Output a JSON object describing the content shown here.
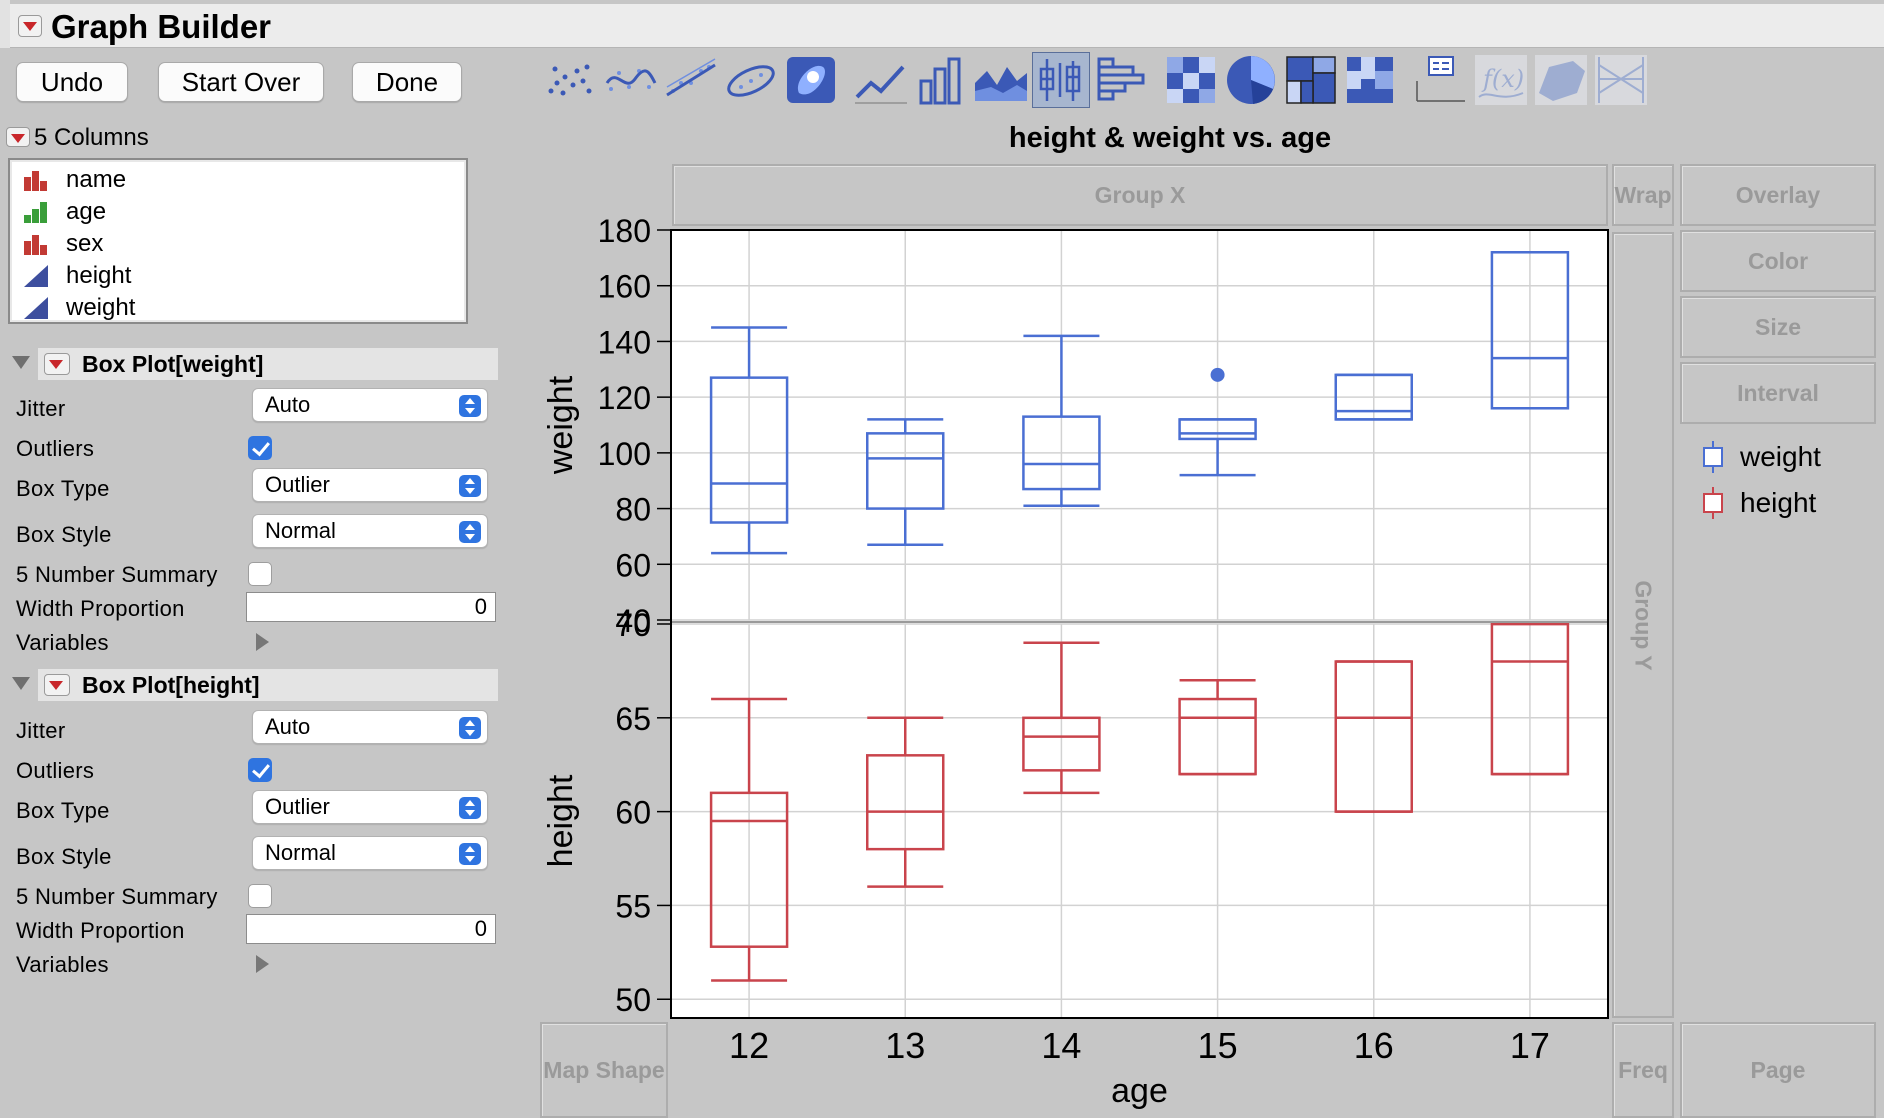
{
  "window": {
    "title": "Graph Builder"
  },
  "toolbar": {
    "undo_label": "Undo",
    "start_over_label": "Start Over",
    "done_label": "Done"
  },
  "palette": {
    "items": [
      {
        "name": "points-icon",
        "selected": false,
        "enabled": true
      },
      {
        "name": "smoother-icon",
        "selected": false,
        "enabled": true
      },
      {
        "name": "line-of-fit-icon",
        "selected": false,
        "enabled": true
      },
      {
        "name": "ellipse-icon",
        "selected": false,
        "enabled": true
      },
      {
        "name": "contour-icon",
        "selected": false,
        "enabled": true
      },
      {
        "name": "line-icon",
        "selected": false,
        "enabled": true
      },
      {
        "name": "bar-icon",
        "selected": false,
        "enabled": true
      },
      {
        "name": "area-icon",
        "selected": false,
        "enabled": true
      },
      {
        "name": "box-plot-icon",
        "selected": true,
        "enabled": true
      },
      {
        "name": "histogram-icon",
        "selected": false,
        "enabled": true
      },
      {
        "name": "heatmap-icon",
        "selected": false,
        "enabled": true
      },
      {
        "name": "pie-icon",
        "selected": false,
        "enabled": true
      },
      {
        "name": "treemap-icon",
        "selected": false,
        "enabled": true
      },
      {
        "name": "mosaic-icon",
        "selected": false,
        "enabled": true
      },
      {
        "name": "caption-box-icon",
        "selected": false,
        "enabled": true
      },
      {
        "name": "formula-icon",
        "selected": false,
        "enabled": false
      },
      {
        "name": "map-shapes-icon",
        "selected": false,
        "enabled": false
      },
      {
        "name": "parallel-icon",
        "selected": false,
        "enabled": false
      }
    ]
  },
  "columns": {
    "header": "5 Columns",
    "items": [
      {
        "label": "name",
        "type": "nominal"
      },
      {
        "label": "age",
        "type": "ordinal"
      },
      {
        "label": "sex",
        "type": "nominal"
      },
      {
        "label": "height",
        "type": "continuous"
      },
      {
        "label": "weight",
        "type": "continuous"
      }
    ]
  },
  "panels": [
    {
      "title": "Box Plot[weight]",
      "jitter_label": "Jitter",
      "jitter_value": "Auto",
      "outliers_label": "Outliers",
      "outliers_checked": true,
      "box_type_label": "Box Type",
      "box_type_value": "Outlier",
      "box_style_label": "Box Style",
      "box_style_value": "Normal",
      "five_num_label": "5 Number Summary",
      "five_num_checked": false,
      "width_label": "Width Proportion",
      "width_value": "0",
      "variables_label": "Variables"
    },
    {
      "title": "Box Plot[height]",
      "jitter_label": "Jitter",
      "jitter_value": "Auto",
      "outliers_label": "Outliers",
      "outliers_checked": true,
      "box_type_label": "Box Type",
      "box_type_value": "Outlier",
      "box_style_label": "Box Style",
      "box_style_value": "Normal",
      "five_num_label": "5 Number Summary",
      "five_num_checked": false,
      "width_label": "Width Proportion",
      "width_value": "0",
      "variables_label": "Variables"
    }
  ],
  "zones": {
    "group_x": "Group X",
    "wrap": "Wrap",
    "overlay": "Overlay",
    "color": "Color",
    "size": "Size",
    "interval": "Interval",
    "group_y": "Group Y",
    "map_shape": "Map Shape",
    "freq": "Freq",
    "page": "Page"
  },
  "legend": [
    {
      "label": "weight",
      "color": "#4a6fd3"
    },
    {
      "label": "height",
      "color": "#c9444c"
    }
  ],
  "chart_data": {
    "type": "box",
    "title": "height & weight vs. age",
    "xlabel": "age",
    "categories": [
      "12",
      "13",
      "14",
      "15",
      "16",
      "17"
    ],
    "grid": true,
    "panels": [
      {
        "ylabel": "weight",
        "color": "#4a6fd3",
        "ylim": [
          40,
          180
        ],
        "yticks": [
          40,
          60,
          80,
          100,
          120,
          140,
          160,
          180
        ],
        "boxes": [
          {
            "min": 64,
            "q1": 75,
            "median": 89,
            "q3": 127,
            "max": 145,
            "outliers": []
          },
          {
            "min": 67,
            "q1": 80,
            "median": 98,
            "q3": 107,
            "max": 112,
            "outliers": []
          },
          {
            "min": 81,
            "q1": 87,
            "median": 96,
            "q3": 113,
            "max": 142,
            "outliers": []
          },
          {
            "min": 92,
            "q1": 105,
            "median": 107,
            "q3": 112,
            "max": 112,
            "outliers": [
              128
            ]
          },
          {
            "min": 112,
            "q1": 112,
            "median": 115,
            "q3": 128,
            "max": 128,
            "outliers": []
          },
          {
            "min": 116,
            "q1": 116,
            "median": 134,
            "q3": 172,
            "max": 172,
            "outliers": []
          }
        ]
      },
      {
        "ylabel": "height",
        "color": "#c9444c",
        "ylim": [
          49,
          70
        ],
        "yticks": [
          50,
          55,
          60,
          65,
          70
        ],
        "boxes": [
          {
            "min": 51,
            "q1": 52.8,
            "median": 59.5,
            "q3": 61,
            "max": 66,
            "outliers": []
          },
          {
            "min": 56,
            "q1": 58,
            "median": 60,
            "q3": 63,
            "max": 65,
            "outliers": []
          },
          {
            "min": 61,
            "q1": 62.2,
            "median": 64,
            "q3": 65,
            "max": 69,
            "outliers": []
          },
          {
            "min": 62,
            "q1": 62,
            "median": 65,
            "q3": 66,
            "max": 67,
            "outliers": []
          },
          {
            "min": 60,
            "q1": 60,
            "median": 65,
            "q3": 68,
            "max": 68,
            "outliers": []
          },
          {
            "min": 62,
            "q1": 62,
            "median": 68,
            "q3": 70,
            "max": 70,
            "outliers": []
          }
        ]
      }
    ]
  }
}
